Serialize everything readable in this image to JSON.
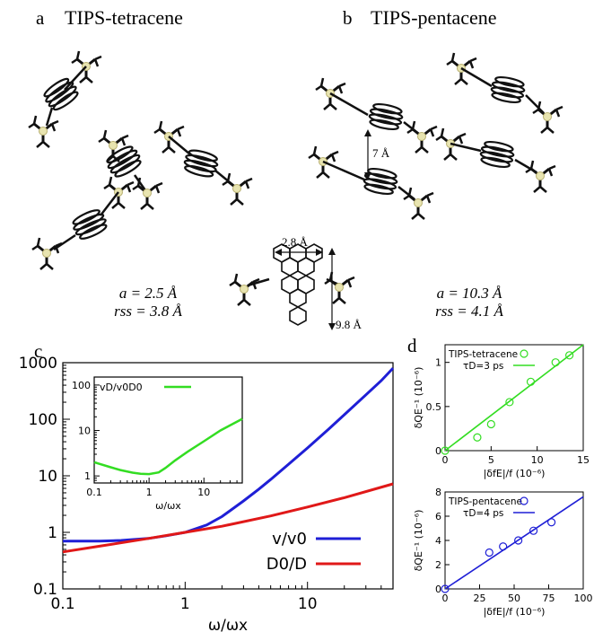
{
  "panel_a": {
    "letter": "a",
    "title": "TIPS-tetracene",
    "param_a": "a = 2.5 Å",
    "param_rss": "rss = 3.8 Å"
  },
  "panel_b": {
    "letter": "b",
    "title": "TIPS-pentacene",
    "param_a": "a = 10.3 Å",
    "param_rss": "rss = 4.1 Å",
    "spacing_label": "7 Å"
  },
  "molecule": {
    "width_label": "2.8 Å",
    "length_label": "9.8 Å"
  },
  "chart_data": [
    {
      "id": "c",
      "panel_letter": "c",
      "type": "line",
      "xscale": "log",
      "yscale": "log",
      "xlim": [
        0.1,
        50
      ],
      "ylim": [
        0.1,
        1000
      ],
      "xlabel": "ω/ωx",
      "ylabel": "",
      "xticks": [
        "0.1",
        "1",
        "10"
      ],
      "yticks": [
        "0.1",
        "1",
        "10",
        "100",
        "1000"
      ],
      "legend_position": "bottom-right",
      "series": [
        {
          "name": "v/v0",
          "color": "#1f1fd6",
          "x": [
            0.1,
            0.2,
            0.3,
            0.5,
            0.7,
            1,
            1.5,
            2,
            3,
            4,
            5,
            7,
            10,
            15,
            20,
            30,
            40,
            50
          ],
          "y": [
            0.7,
            0.7,
            0.72,
            0.78,
            0.87,
            1.0,
            1.35,
            1.9,
            3.6,
            5.8,
            8.6,
            16,
            31,
            68,
            120,
            270,
            480,
            800
          ]
        },
        {
          "name": "D0/D",
          "color": "#e01818",
          "x": [
            0.1,
            0.2,
            0.5,
            1,
            2,
            5,
            10,
            20,
            50
          ],
          "y": [
            0.45,
            0.57,
            0.78,
            1.0,
            1.28,
            1.95,
            2.8,
            4.1,
            7.2
          ]
        }
      ],
      "inset": {
        "type": "line",
        "xscale": "log",
        "yscale": "log",
        "xlim": [
          0.1,
          50
        ],
        "ylim": [
          0.7,
          150
        ],
        "xlabel": "ω/ωx",
        "xticks": [
          "0.1",
          "1",
          "10"
        ],
        "yticks": [
          "1",
          "10",
          "100"
        ],
        "series": [
          {
            "name": "vD/v0D0",
            "color": "#33dd22",
            "x": [
              0.1,
              0.2,
              0.3,
              0.5,
              0.7,
              1,
              1.5,
              2,
              3,
              5,
              10,
              20,
              50
            ],
            "y": [
              2.0,
              1.55,
              1.35,
              1.18,
              1.12,
              1.1,
              1.2,
              1.5,
              2.2,
              3.4,
              5.8,
              10,
              18
            ]
          }
        ]
      }
    },
    {
      "id": "d-top",
      "panel_letter": "d",
      "type": "scatter",
      "xlim": [
        0,
        15
      ],
      "ylim": [
        0,
        1.2
      ],
      "xlabel": "|δfE|/f (10⁻⁶)",
      "ylabel": "δQE⁻¹ (10⁻⁶)",
      "xticks": [
        "0",
        "5",
        "10",
        "15"
      ],
      "yticks": [
        "0",
        "0.5",
        "1"
      ],
      "legend_position": "top-left",
      "series": [
        {
          "name": "TIPS-tetracene",
          "color": "#33dd22",
          "x": [
            0,
            3.5,
            5,
            7,
            9.3,
            12,
            13.5
          ],
          "y": [
            0,
            0.15,
            0.3,
            0.55,
            0.78,
            1.0,
            1.08
          ]
        }
      ],
      "fit": {
        "label": "τD=3 ps",
        "color": "#33dd22",
        "x": [
          0,
          15
        ],
        "y": [
          0,
          1.2
        ]
      }
    },
    {
      "id": "d-bottom",
      "type": "scatter",
      "xlim": [
        0,
        100
      ],
      "ylim": [
        0,
        8
      ],
      "xlabel": "|δfE|/f (10⁻⁶)",
      "ylabel": "δQE⁻¹ (10⁻⁶)",
      "xticks": [
        "0",
        "25",
        "50",
        "75",
        "100"
      ],
      "yticks": [
        "0",
        "2",
        "4",
        "6",
        "8"
      ],
      "legend_position": "top-left",
      "series": [
        {
          "name": "TIPS-pentacene",
          "color": "#1f1fd6",
          "x": [
            0,
            32,
            42,
            53,
            64,
            77
          ],
          "y": [
            0,
            3.0,
            3.5,
            4.0,
            4.8,
            5.5
          ]
        }
      ],
      "fit": {
        "label": "τD=4 ps",
        "color": "#1f1fd6",
        "x": [
          0,
          100
        ],
        "y": [
          0,
          7.6
        ]
      }
    }
  ]
}
